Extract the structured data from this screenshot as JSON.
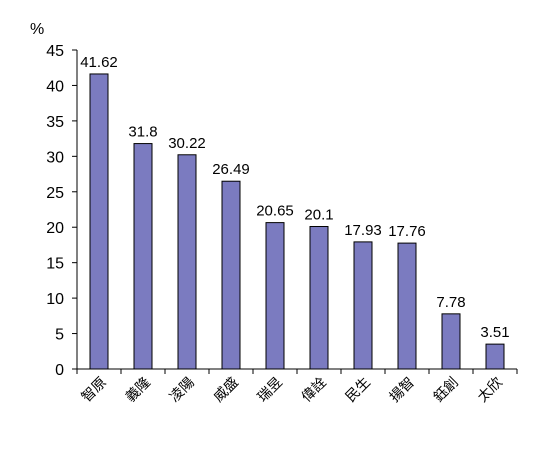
{
  "chart_data": {
    "type": "bar",
    "ylabel": "%",
    "ylim": [
      0,
      45
    ],
    "yticks": [
      0,
      5,
      10,
      15,
      20,
      25,
      30,
      35,
      40,
      45
    ],
    "grid": false,
    "legend": "none",
    "bar_color": "#7b7bc0",
    "bar_edge_color": "#000000",
    "categories": [
      "智原",
      "義隆",
      "凌陽",
      "威盛",
      "瑞昱",
      "偉詮",
      "民生",
      "揚智",
      "鈺創",
      "太欣"
    ],
    "values": [
      41.62,
      31.8,
      30.22,
      26.49,
      20.65,
      20.1,
      17.93,
      17.76,
      7.78,
      3.51
    ],
    "value_labels": [
      "41.62",
      "31.8",
      "30.22",
      "26.49",
      "20.65",
      "20.1",
      "17.93",
      "17.76",
      "7.78",
      "3.51"
    ]
  }
}
